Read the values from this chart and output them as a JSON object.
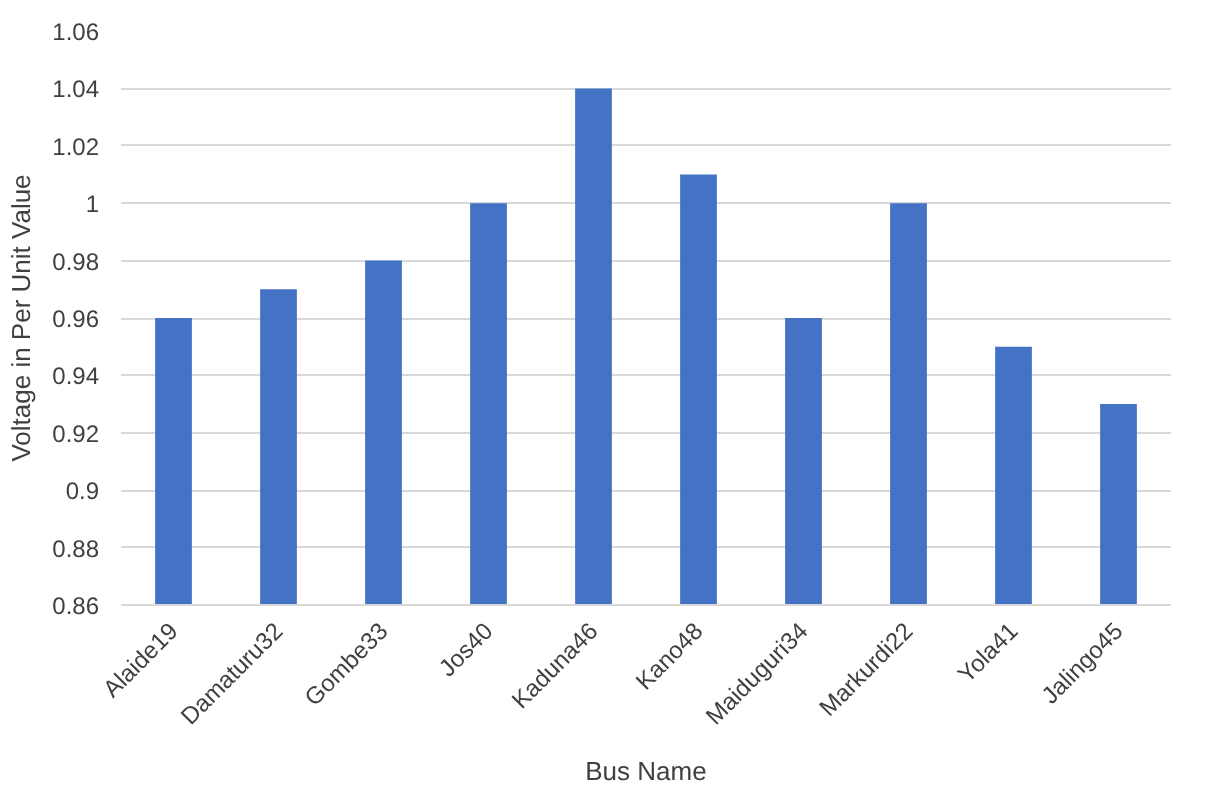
{
  "chart_data": {
    "type": "bar",
    "xlabel": "Bus Name",
    "ylabel": "Voltage in Per Unit Value",
    "categories": [
      "Alaide19",
      "Damaturu32",
      "Gombe33",
      "Jos40",
      "Kaduna46",
      "Kano48",
      "Maiduguri34",
      "Markurdi22",
      "Yola41",
      "Jalingo45"
    ],
    "values": [
      0.96,
      0.97,
      0.98,
      1.0,
      1.04,
      1.01,
      0.96,
      1.0,
      0.95,
      0.93
    ],
    "color": "#4472c4",
    "ylim": [
      0.86,
      1.06
    ],
    "yticks": [
      0.86,
      0.88,
      0.9,
      0.92,
      0.94,
      0.96,
      0.98,
      1,
      1.02,
      1.04,
      1.06
    ],
    "grid": "y"
  }
}
